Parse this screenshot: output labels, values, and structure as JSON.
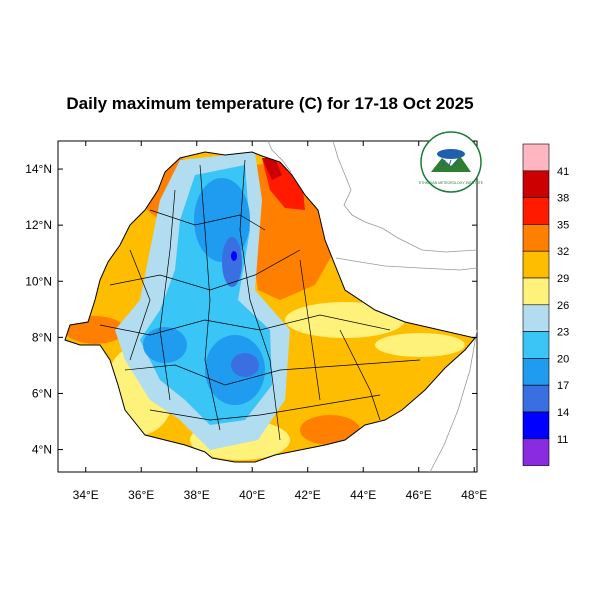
{
  "title": "Daily maximum temperature (C) for 17-18 Oct 2025",
  "map": {
    "lat_ticks": [
      {
        "lat": 14,
        "label": "14°N"
      },
      {
        "lat": 12,
        "label": "12°N"
      },
      {
        "lat": 10,
        "label": "10°N"
      },
      {
        "lat": 8,
        "label": "8°N"
      },
      {
        "lat": 6,
        "label": "6°N"
      },
      {
        "lat": 4,
        "label": "4°N"
      }
    ],
    "lon_ticks": [
      {
        "lon": 34,
        "label": "34°E"
      },
      {
        "lon": 36,
        "label": "36°E"
      },
      {
        "lon": 38,
        "label": "38°E"
      },
      {
        "lon": 40,
        "label": "40°E"
      },
      {
        "lon": 42,
        "label": "42°E"
      },
      {
        "lon": 44,
        "label": "44°E"
      },
      {
        "lon": 46,
        "label": "46°E"
      },
      {
        "lon": 48,
        "label": "48°E"
      }
    ],
    "lon_range": [
      33,
      48.1
    ],
    "lat_range": [
      3.2,
      15
    ],
    "colors": {
      "country_outline": "#000000",
      "neighbor_border": "#9a9a9a"
    }
  },
  "colorbar": {
    "labels": [
      "41",
      "38",
      "35",
      "32",
      "29",
      "26",
      "23",
      "20",
      "17",
      "14",
      "11"
    ],
    "colors": [
      "#ffb6c1",
      "#cc0000",
      "#ff1a00",
      "#ff7f00",
      "#ffbd00",
      "#fff27a",
      "#b2dcef",
      "#39c5f6",
      "#1f9cf0",
      "#3a6fe2",
      "#0000ff",
      "#8a2be2"
    ]
  },
  "logo": {
    "icon": "ethiopian-meteorology-institute-logo",
    "text": "ETHIOPIAN METEOROLOGY INSTITUTE",
    "colors": {
      "ring": "#1b7a3a",
      "sky": "#1f5fb0",
      "mountain": "#2e7d32"
    }
  }
}
